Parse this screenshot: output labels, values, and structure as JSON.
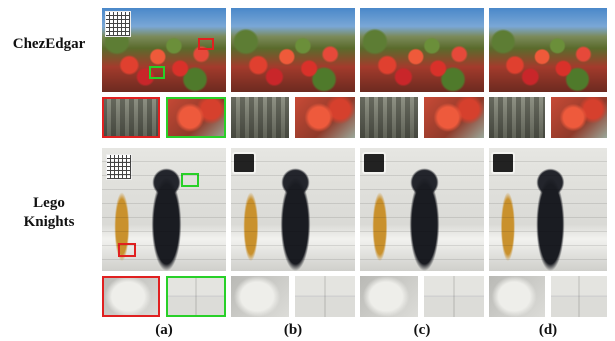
{
  "rows": [
    {
      "label_lines": [
        "ChezEdgar"
      ]
    },
    {
      "label_lines": [
        "Lego",
        "Knights"
      ]
    }
  ],
  "columns": [
    "(a)",
    "(b)",
    "(c)",
    "(d)"
  ],
  "colors": {
    "highlight_box_1": "#e02020",
    "highlight_box_2": "#28d028"
  }
}
